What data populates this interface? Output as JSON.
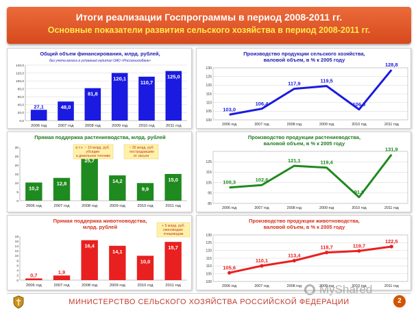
{
  "header": {
    "title": "Итоги реализации Госпрограммы в период 2008-2011 гг.",
    "subtitle": "Основные показатели развития сельского хозяйства в период 2008-2011 гг."
  },
  "footer": {
    "ministry": "МИНИСТЕРСТВО СЕЛЬСКОГО ХОЗЯЙСТВА РОССИЙСКОЙ ФЕДЕРАЦИИ",
    "page_number": "2",
    "watermark": "MyShared"
  },
  "colors": {
    "blue": "#1a1ae0",
    "green": "#1f8a1f",
    "red": "#e8201f",
    "orange": "#e8641e",
    "title_text": "#1a1ab0",
    "note_bg": "#fff2a8"
  },
  "chart_data": [
    {
      "id": "financing",
      "type": "bar",
      "title": "Общий объем финансирования, млрд. рублей,",
      "subtitle": "без учета взноса в уставный капитал ОАО «Россельхозбанк»",
      "categories": [
        "2006 год",
        "2007 год",
        "2008 год",
        "2009 год",
        "2010 год",
        "2011 год"
      ],
      "values": [
        27.1,
        48.0,
        81.8,
        120.1,
        110.7,
        125.0
      ],
      "labels": [
        "27,1",
        "48,0",
        "81,8",
        "120,1",
        "110,7",
        "125,0"
      ],
      "yticks": [
        "0,0",
        "20,0",
        "40,0",
        "60,0",
        "80,0",
        "100,0",
        "120,0",
        "140,0"
      ],
      "ylim": [
        0,
        140
      ],
      "color": "#1a1ae0",
      "grid": true
    },
    {
      "id": "production",
      "type": "line",
      "title": "Производство продукции сельского хозяйства,",
      "subtitle": "валовой объем, в % к 2005 году",
      "categories": [
        "2006 год",
        "2007 год",
        "2008 год",
        "2009 год",
        "2010 год",
        "2011 год"
      ],
      "values": [
        103.0,
        106.4,
        117.9,
        119.5,
        106.0,
        128.8
      ],
      "labels": [
        "103,0",
        "106,4",
        "117,9",
        "119,5",
        "106,0",
        "128,8"
      ],
      "yticks": [
        "100",
        "105",
        "110",
        "115",
        "120",
        "125",
        "130"
      ],
      "ylim": [
        100,
        130
      ],
      "color": "#1a1ae0",
      "grid": true
    },
    {
      "id": "crop_support",
      "type": "bar",
      "title": "Прямая поддержка растениеводства, млрд. рублей",
      "categories": [
        "2006 год",
        "2007 год",
        "2008 год",
        "2009 год",
        "2010 год",
        "2011 год"
      ],
      "values": [
        10.2,
        12.8,
        25.7,
        14.2,
        9.9,
        15.0
      ],
      "labels": [
        "10,2",
        "12,8",
        "25,7",
        "14,2",
        "9,9",
        "15,0"
      ],
      "yticks": [
        "0",
        "5",
        "10",
        "15",
        "20",
        "25",
        "30"
      ],
      "ylim": [
        0,
        30
      ],
      "color": "#1f8a1f",
      "grid": false,
      "notes": [
        "в т.ч. ~ 10 млрд. руб. субсидии на дизельное топливо",
        "~ 35 млрд. руб. пострадавшим от засухи"
      ]
    },
    {
      "id": "crop_production",
      "type": "line",
      "title": "Производство продукции растениеводства,",
      "subtitle": "валовой объем, в % к 2005 году",
      "categories": [
        "2006 год",
        "2007 год",
        "2008 год",
        "2009 год",
        "2010 год",
        "2011 год"
      ],
      "values": [
        100.3,
        102.6,
        121.1,
        119.4,
        91.0,
        131.9
      ],
      "labels": [
        "100,3",
        "102,6",
        "121,1",
        "119,4",
        "91,0",
        "131,9"
      ],
      "yticks": [
        "85",
        "95",
        "105",
        "115",
        "125"
      ],
      "ylim": [
        85,
        135
      ],
      "color": "#1f8a1f",
      "grid": true
    },
    {
      "id": "livestock_support",
      "type": "bar",
      "title": "Прямая поддержка животноводства,",
      "subtitle": "млрд. рублей",
      "categories": [
        "2006 год",
        "2007 год",
        "2008 год",
        "2009 год",
        "2010 год",
        "2011 год"
      ],
      "values": [
        0.7,
        1.9,
        16.4,
        14.1,
        10.0,
        15.7
      ],
      "labels": [
        "0,7",
        "1,9",
        "16,4",
        "14,1",
        "10,0",
        "15,7"
      ],
      "yticks": [
        "0",
        "2",
        "4",
        "6",
        "8",
        "10",
        "12",
        "14",
        "16",
        "18"
      ],
      "ylim": [
        0,
        18
      ],
      "color": "#e8201f",
      "grid": false,
      "notes": [
        "+ 9 млрд. руб. свиноводам и птицеводам"
      ]
    },
    {
      "id": "livestock_production",
      "type": "line",
      "title": "Производство продукции животноводства,",
      "subtitle": "валовой объем, в % к 2005 году",
      "categories": [
        "2006 год",
        "2007 год",
        "2008 год",
        "2009 год",
        "2010 год",
        "2011 год"
      ],
      "values": [
        105.6,
        110.1,
        113.4,
        118.7,
        119.7,
        122.5
      ],
      "labels": [
        "105,6",
        "110,1",
        "113,4",
        "118,7",
        "119,7",
        "122,5"
      ],
      "yticks": [
        "100",
        "105",
        "110",
        "115",
        "120",
        "125",
        "130"
      ],
      "ylim": [
        100,
        130
      ],
      "color": "#e8201f",
      "grid": true
    }
  ]
}
